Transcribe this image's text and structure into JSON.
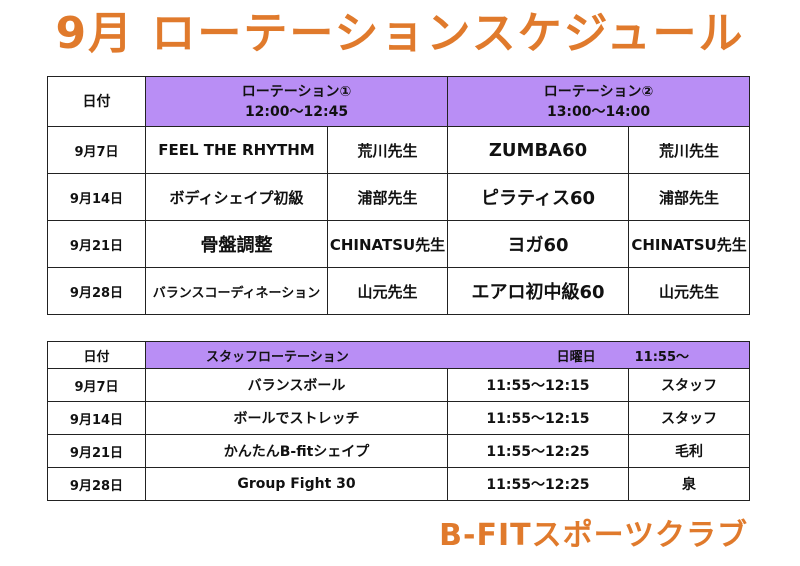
{
  "title": "9月 ローテーションスケジュール",
  "table1": {
    "date_header": "日付",
    "rotation1_title": "ローテーション①",
    "rotation1_time": "12:00〜12:45",
    "rotation2_title": "ローテーション②",
    "rotation2_time": "13:00〜14:00",
    "rows": [
      {
        "date": "9月7日",
        "class1": "FEEL THE RHYTHM",
        "teacher1": "荒川先生",
        "class2": "ZUMBA60",
        "teacher2": "荒川先生"
      },
      {
        "date": "9月14日",
        "class1": "ボディシェイプ初級",
        "teacher1": "浦部先生",
        "class2": "ピラティス60",
        "teacher2": "浦部先生"
      },
      {
        "date": "9月21日",
        "class1": "骨盤調整",
        "teacher1": "CHINATSU先生",
        "class2": "ヨガ60",
        "teacher2": "CHINATSU先生"
      },
      {
        "date": "9月28日",
        "class1": "バランスコーディネーション",
        "teacher1": "山元先生",
        "class2": "エアロ初中級60",
        "teacher2": "山元先生"
      }
    ]
  },
  "table2": {
    "date_header": "日付",
    "staff_title": "スタッフローテーション",
    "day_label": "日曜日",
    "start_time": "11:55〜",
    "rows": [
      {
        "date": "9月7日",
        "program": "バランスボール",
        "time": "11:55〜12:15",
        "staff": "スタッフ"
      },
      {
        "date": "9月14日",
        "program": "ボールでストレッチ",
        "time": "11:55〜12:15",
        "staff": "スタッフ"
      },
      {
        "date": "9月21日",
        "program": "かんたんB-fitシェイプ",
        "time": "11:55〜12:25",
        "staff": "毛利"
      },
      {
        "date": "9月28日",
        "program": "Group Fight 30",
        "time": "11:55〜12:25",
        "staff": "泉"
      }
    ]
  },
  "footer": "B-FITスポーツクラブ",
  "colors": {
    "accent": "#e07a2c",
    "header_bg": "#b98ef5"
  }
}
